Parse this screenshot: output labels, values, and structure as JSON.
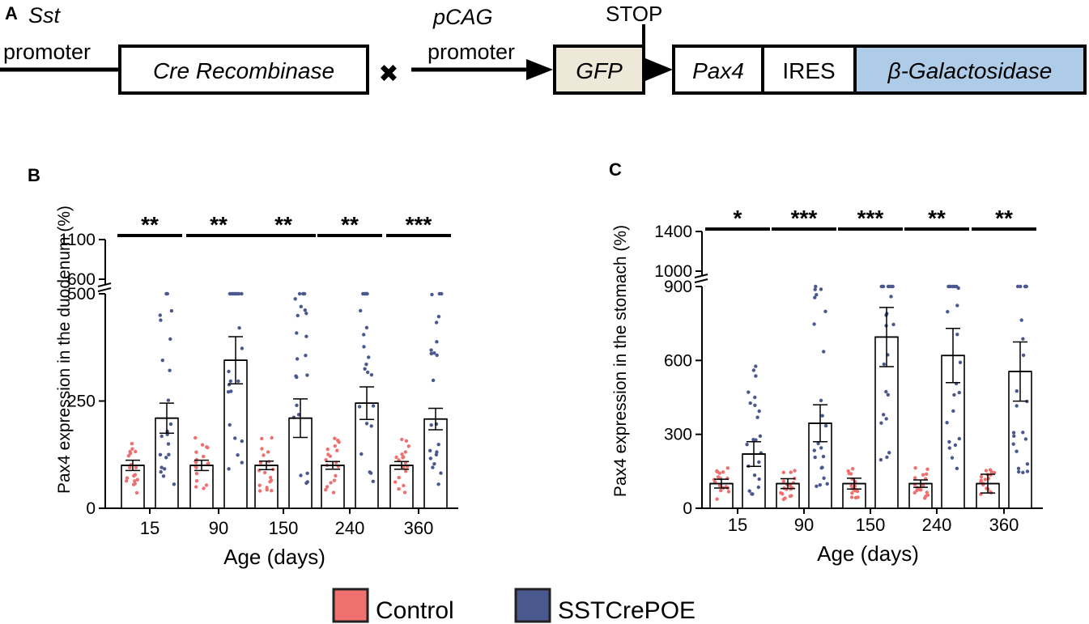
{
  "panels": {
    "a_label": "A",
    "b_label": "B",
    "c_label": "C"
  },
  "construct": {
    "sst_promoter_line1": "Sst",
    "sst_promoter_line2": "promoter",
    "cre_box": "Cre Recombinase",
    "cross_symbol": "✖",
    "pcag_promoter_line1": "pCAG",
    "pcag_promoter_line2": "promoter",
    "stop_label": "STOP",
    "gfp_box": "GFP",
    "pax4_box": "Pax4",
    "ires_box": "IRES",
    "bgal_box": "β-Galactosidase",
    "gfp_color": "#ede8d8",
    "bgal_color": "#aecbe8"
  },
  "legend": {
    "control_label": "Control",
    "sstcrepoe_label": "SSTCrePOE",
    "control_color": "#f07070",
    "sstcrepoe_color": "#4a5890"
  },
  "chart_data": [
    {
      "panel": "B",
      "type": "bar",
      "xlabel": "Age (days)",
      "ylabel": "Pax4 expression in the duodenum (%)",
      "categories": [
        "15",
        "90",
        "150",
        "240",
        "360"
      ],
      "y_axis": {
        "broken": true,
        "lower_range": [
          0,
          500
        ],
        "lower_ticks": [
          "0",
          "250",
          "500"
        ],
        "upper_ticks": [
          "600",
          "1100"
        ]
      },
      "series": [
        {
          "name": "Control",
          "color": "#f07070",
          "values": [
            100,
            100,
            100,
            100,
            100
          ],
          "sem": [
            12,
            12,
            10,
            9,
            9
          ]
        },
        {
          "name": "SSTCrePOE",
          "color": "#4a5890",
          "values": [
            210,
            345,
            210,
            245,
            208
          ],
          "sem": [
            35,
            55,
            45,
            38,
            25
          ]
        }
      ],
      "significance": [
        "**",
        "**",
        "**",
        "**",
        "***"
      ]
    },
    {
      "panel": "C",
      "type": "bar",
      "xlabel": "Age (days)",
      "ylabel": "Pax4 expression in the stomach (%)",
      "categories": [
        "15",
        "90",
        "150",
        "240",
        "360"
      ],
      "y_axis": {
        "broken": true,
        "lower_range": [
          0,
          900
        ],
        "lower_ticks": [
          "0",
          "300",
          "600",
          "900"
        ],
        "upper_ticks": [
          "1000",
          "1400"
        ]
      },
      "series": [
        {
          "name": "Control",
          "color": "#f07070",
          "values": [
            100,
            100,
            100,
            100,
            100
          ],
          "sem": [
            18,
            20,
            22,
            15,
            38
          ]
        },
        {
          "name": "SSTCrePOE",
          "color": "#4a5890",
          "values": [
            220,
            345,
            695,
            620,
            555
          ],
          "sem": [
            50,
            75,
            120,
            110,
            120
          ]
        }
      ],
      "significance": [
        "*",
        "***",
        "***",
        "**",
        "**"
      ]
    }
  ]
}
